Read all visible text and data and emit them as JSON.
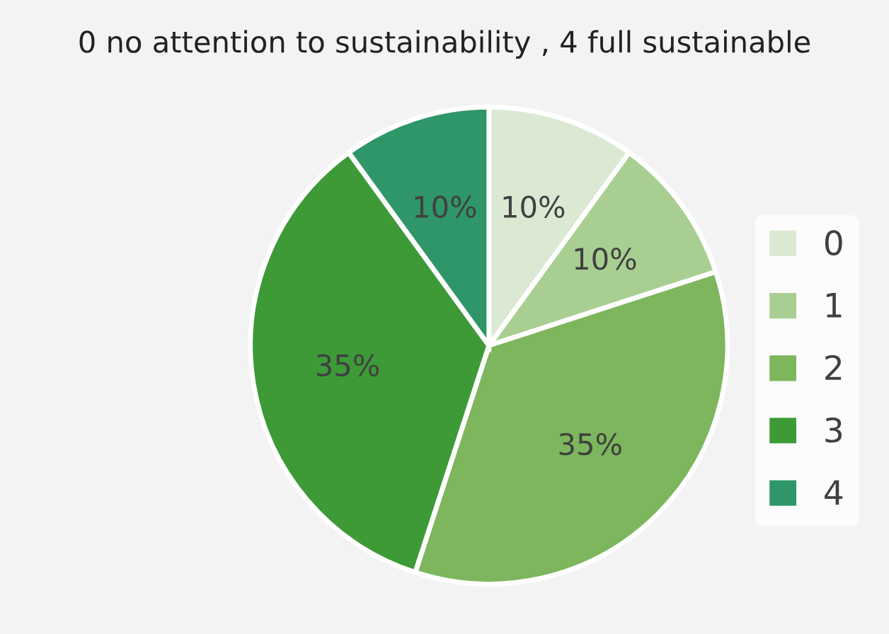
{
  "chart_data": {
    "type": "pie",
    "title": "0 no attention to sustainability , 4 full sustainable",
    "categories": [
      "0",
      "1",
      "2",
      "3",
      "4"
    ],
    "values": [
      10,
      10,
      35,
      35,
      10
    ],
    "value_labels": [
      "10%",
      "10%",
      "35%",
      "35%",
      "10%"
    ],
    "colors": [
      "#dbe9d3",
      "#a8cf91",
      "#7db65c",
      "#3d9a37",
      "#2f9669"
    ],
    "legend": "right"
  }
}
